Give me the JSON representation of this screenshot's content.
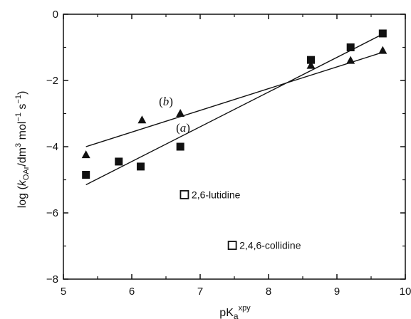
{
  "chart_data": {
    "type": "scatter",
    "xlim": [
      5,
      10
    ],
    "ylim": [
      -8,
      0
    ],
    "x_ticks": [
      5,
      6,
      7,
      8,
      9,
      10
    ],
    "y_ticks": [
      -8,
      -6,
      -4,
      -2,
      0
    ],
    "x_tick_labels": [
      "5",
      "6",
      "7",
      "8",
      "9",
      "10"
    ],
    "y_tick_labels": [
      "−8",
      "−6",
      "−4",
      "−2",
      "0"
    ],
    "xlabel": {
      "main": "pK",
      "sub": "a",
      "sup": "xpy"
    },
    "ylabel": {
      "prefix": "log (",
      "k": "k",
      "k_sub": "OAr",
      "middle": "/dm",
      "sup3": "3",
      "mol": " mol",
      "sup_m1a": "−1",
      "s": " s",
      "sup_m1b": "−1",
      "suffix": ")"
    },
    "grid": false,
    "series": [
      {
        "name": "(a)",
        "label_parts": {
          "open": "(",
          "letter": "a",
          "close": ")"
        },
        "marker": "square",
        "points": [
          {
            "x": 5.33,
            "y": -4.85
          },
          {
            "x": 5.81,
            "y": -4.45
          },
          {
            "x": 6.13,
            "y": -4.6
          },
          {
            "x": 6.71,
            "y": -4.0
          },
          {
            "x": 8.62,
            "y": -1.38
          },
          {
            "x": 9.2,
            "y": -1.0
          },
          {
            "x": 9.67,
            "y": -0.58
          }
        ],
        "fit": [
          {
            "x": 5.33,
            "y": -5.15
          },
          {
            "x": 9.67,
            "y": -0.6
          }
        ],
        "label_at": {
          "x": 6.75,
          "y": -3.55
        }
      },
      {
        "name": "(b)",
        "label_parts": {
          "open": "(",
          "letter": "b",
          "close": ")"
        },
        "marker": "triangle",
        "points": [
          {
            "x": 5.33,
            "y": -4.25
          },
          {
            "x": 6.15,
            "y": -3.2
          },
          {
            "x": 6.71,
            "y": -3.0
          },
          {
            "x": 8.62,
            "y": -1.55
          },
          {
            "x": 9.2,
            "y": -1.4
          },
          {
            "x": 9.67,
            "y": -1.1
          }
        ],
        "fit": [
          {
            "x": 5.33,
            "y": -4.0
          },
          {
            "x": 9.67,
            "y": -1.15
          }
        ],
        "label_at": {
          "x": 6.5,
          "y": -2.75
        }
      }
    ],
    "annotations": [
      {
        "text": "2,6-lutidine",
        "marker": "open-square",
        "x": 6.77,
        "y": -5.45
      },
      {
        "text": "2,4,6-collidine",
        "marker": "open-square",
        "x": 7.47,
        "y": -6.98
      }
    ]
  }
}
